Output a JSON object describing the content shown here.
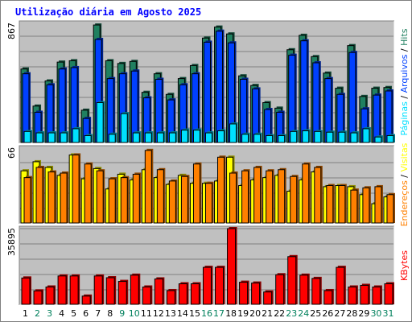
{
  "title": "Utilização diária em Agosto 2025",
  "colors": {
    "panel_bg": "#c0c0c0",
    "hits": "#208060",
    "files": "#0040ff",
    "pages": "#00e0ff",
    "visits": "#ffff00",
    "sites": "#ff8000",
    "kbytes": "#ff0000",
    "day_weekday": "#000000",
    "day_weekend": "#00805c"
  },
  "chart_data": [
    {
      "type": "bar",
      "ymax_label": "867",
      "ylim": [
        0,
        867
      ],
      "legend": [
        "Hits",
        "Arquivos",
        "Páginas"
      ],
      "categories": [
        "1",
        "2",
        "3",
        "4",
        "5",
        "6",
        "7",
        "8",
        "9",
        "10",
        "11",
        "12",
        "13",
        "14",
        "15",
        "16",
        "17",
        "18",
        "19",
        "20",
        "21",
        "22",
        "23",
        "24",
        "25",
        "26",
        "27",
        "28",
        "29",
        "30",
        "31"
      ],
      "series": [
        {
          "name": "Hits",
          "color_key": "hits",
          "values": [
            535,
            265,
            448,
            585,
            595,
            235,
            855,
            595,
            575,
            590,
            365,
            500,
            350,
            465,
            560,
            760,
            840,
            790,
            485,
            415,
            290,
            250,
            675,
            780,
            625,
            505,
            395,
            705,
            335,
            395,
            400
          ]
        },
        {
          "name": "Arquivos",
          "color_key": "files",
          "values": [
            500,
            220,
            420,
            535,
            545,
            175,
            750,
            465,
            500,
            520,
            325,
            460,
            310,
            420,
            500,
            730,
            810,
            725,
            460,
            390,
            240,
            220,
            635,
            740,
            580,
            465,
            350,
            655,
            245,
            345,
            375
          ]
        },
        {
          "name": "Páginas",
          "color_key": "pages",
          "values": [
            80,
            70,
            70,
            70,
            100,
            50,
            290,
            60,
            210,
            70,
            70,
            70,
            70,
            90,
            90,
            70,
            85,
            135,
            60,
            60,
            50,
            50,
            80,
            85,
            80,
            75,
            75,
            70,
            100,
            40,
            50
          ]
        }
      ]
    },
    {
      "type": "bar",
      "ymax_label": "66",
      "ylim": [
        0,
        66
      ],
      "legend": [
        "Visitas",
        "Endereços"
      ],
      "categories": [
        "1",
        "2",
        "3",
        "4",
        "5",
        "6",
        "7",
        "8",
        "9",
        "10",
        "11",
        "12",
        "13",
        "14",
        "15",
        "16",
        "17",
        "18",
        "19",
        "20",
        "21",
        "22",
        "23",
        "24",
        "25",
        "26",
        "27",
        "28",
        "29",
        "30",
        "31"
      ],
      "series": [
        {
          "name": "Visitas",
          "color_key": "visits",
          "values": [
            46,
            54,
            49,
            42,
            60,
            39,
            48,
            30,
            43,
            38,
            47,
            40,
            34,
            42,
            35,
            35,
            37,
            58,
            33,
            38,
            40,
            42,
            28,
            38,
            45,
            32,
            33,
            32,
            25,
            17,
            23
          ]
        },
        {
          "name": "Endereços",
          "color_key": "sites",
          "values": [
            40,
            49,
            45,
            44,
            60,
            52,
            46,
            39,
            40,
            43,
            64,
            47,
            37,
            41,
            52,
            35,
            58,
            44,
            46,
            49,
            46,
            47,
            41,
            52,
            49,
            33,
            33,
            29,
            31,
            32,
            25
          ]
        }
      ]
    },
    {
      "type": "bar",
      "ymax_label": "35895",
      "ylim": [
        0,
        35895
      ],
      "legend": [
        "KBytes"
      ],
      "categories": [
        "1",
        "2",
        "3",
        "4",
        "5",
        "6",
        "7",
        "8",
        "9",
        "10",
        "11",
        "12",
        "13",
        "14",
        "15",
        "16",
        "17",
        "18",
        "19",
        "20",
        "21",
        "22",
        "23",
        "24",
        "25",
        "26",
        "27",
        "28",
        "29",
        "30",
        "31"
      ],
      "series": [
        {
          "name": "KBytes",
          "color_key": "kbytes",
          "values": [
            12480,
            6370,
            8210,
            13440,
            13440,
            3900,
            13440,
            12610,
            10860,
            13820,
            8210,
            12040,
            6500,
            9730,
            9730,
            17530,
            17530,
            35895,
            10470,
            10080,
            5850,
            14020,
            22610,
            13820,
            12280,
            6500,
            17530,
            8210,
            8990,
            8210,
            9730
          ]
        }
      ]
    }
  ]
}
